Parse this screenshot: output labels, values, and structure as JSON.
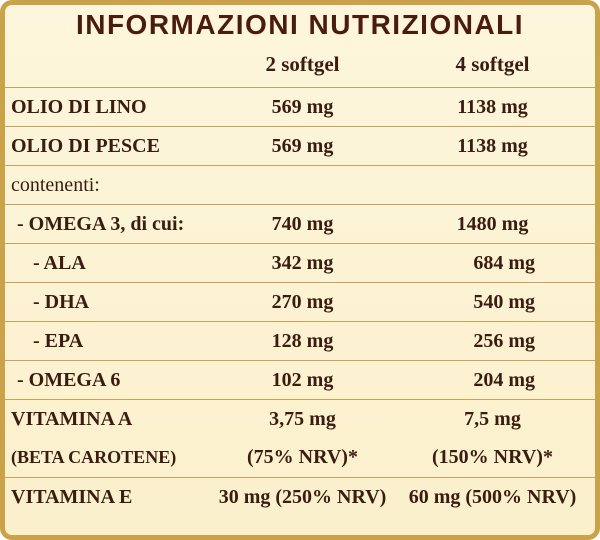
{
  "title": "INFORMAZIONI NUTRIZIONALI",
  "columns": [
    "2 softgel",
    "4 softgel"
  ],
  "rows": [
    {
      "label": "OLIO DI LINO",
      "v2": "569 mg",
      "v4": "1138 mg"
    },
    {
      "label": "OLIO DI PESCE",
      "v2": "569 mg",
      "v4": "1138 mg"
    },
    {
      "label": "contenenti:",
      "v2": "",
      "v4": ""
    },
    {
      "label": "- OMEGA 3, di cui:",
      "v2": "740 mg",
      "v4": "1480 mg"
    },
    {
      "label": "- ALA",
      "v2": "342 mg",
      "v4": "684 mg"
    },
    {
      "label": "- DHA",
      "v2": "270 mg",
      "v4": "540 mg"
    },
    {
      "label": "- EPA",
      "v2": "128 mg",
      "v4": "256 mg"
    },
    {
      "label": "- OMEGA 6",
      "v2": "102 mg",
      "v4": "204 mg"
    },
    {
      "label": "VITAMINA A",
      "v2": "3,75 mg",
      "v4": "7,5 mg",
      "sub_label": "(BETA CAROTENE)",
      "sub_v2": "(75% NRV)*",
      "sub_v4": "(150% NRV)*"
    },
    {
      "label": "VITAMINA E",
      "v2": "30 mg (250% NRV)",
      "v4": "60 mg (500% NRV)"
    }
  ]
}
